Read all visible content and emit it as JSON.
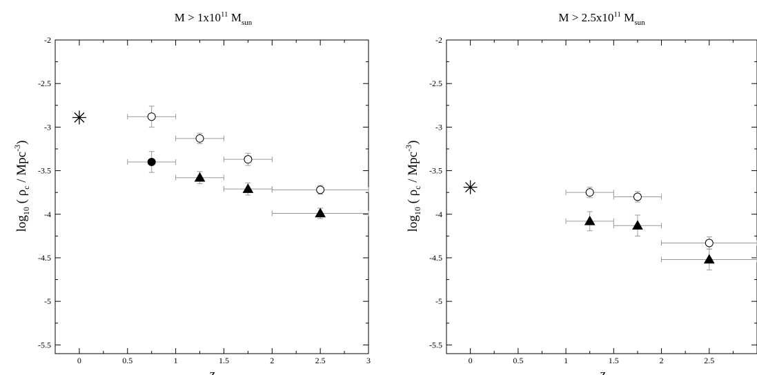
{
  "chart_data": [
    {
      "type": "scatter",
      "title_main": "M > 1x10",
      "title_sup": "11",
      "title_space": " M",
      "title_sub": "sun",
      "xlabel": "z",
      "ylabel_prefix": "log",
      "ylabel_sub": "10",
      "ylabel_mid": " ( ρ",
      "ylabel_sub2": "c",
      "ylabel_mid2": " / Mpc",
      "ylabel_sup": "-3",
      "ylabel_end": ")",
      "xlim": [
        -0.25,
        3
      ],
      "ylim": [
        -5.6,
        -2
      ],
      "xticks": [
        0,
        0.5,
        1,
        1.5,
        2,
        2.5,
        3
      ],
      "xtick_labels": [
        "0",
        "0.5",
        "1",
        "1.5",
        "2",
        "2.5",
        "3"
      ],
      "yticks": [
        -5.5,
        -5,
        -4.5,
        -4,
        -3.5,
        -3,
        -2.5,
        -2
      ],
      "ytick_labels": [
        "-5.5",
        "-5",
        "-4.5",
        "-4",
        "-3.5",
        "-3",
        "-2.5",
        "-2"
      ],
      "series": [
        {
          "marker": "open-circle",
          "points": [
            {
              "x": 0.75,
              "y": -2.88,
              "xerr": 0.25,
              "yerr": 0.12
            },
            {
              "x": 1.25,
              "y": -3.13,
              "xerr": 0.25,
              "yerr": 0.06
            },
            {
              "x": 1.75,
              "y": -3.37,
              "xerr": 0.25,
              "yerr": 0.07
            },
            {
              "x": 2.5,
              "y": -3.72,
              "xerr": 0.5,
              "yerr": 0.05
            }
          ]
        },
        {
          "marker": "filled-circle",
          "points": [
            {
              "x": 0.75,
              "y": -3.4,
              "xerr": 0.25,
              "yerr": 0.12
            }
          ]
        },
        {
          "marker": "filled-triangle",
          "points": [
            {
              "x": 1.25,
              "y": -3.58,
              "xerr": 0.25,
              "yerr": 0.07
            },
            {
              "x": 1.75,
              "y": -3.71,
              "xerr": 0.25,
              "yerr": 0.07
            },
            {
              "x": 2.5,
              "y": -3.99,
              "xerr": 0.5,
              "yerr": 0.06
            }
          ]
        },
        {
          "marker": "star",
          "points": [
            {
              "x": 0,
              "y": -2.89,
              "xerr": 0,
              "yerr": 0
            }
          ]
        }
      ]
    },
    {
      "type": "scatter",
      "title_main": "M > 2.5x10",
      "title_sup": "11",
      "title_space": " M",
      "title_sub": "sun",
      "xlabel": "z",
      "ylabel_prefix": "log",
      "ylabel_sub": "10",
      "ylabel_mid": " ( ρ",
      "ylabel_sub2": "c",
      "ylabel_mid2": " / Mpc",
      "ylabel_sup": "-3",
      "ylabel_end": ")",
      "xlim": [
        -0.25,
        3
      ],
      "ylim": [
        -5.6,
        -2
      ],
      "xticks": [
        0,
        0.5,
        1,
        1.5,
        2,
        2.5
      ],
      "xtick_labels": [
        "0",
        "0.5",
        "1",
        "1.5",
        "2",
        "2.5"
      ],
      "yticks": [
        -5.5,
        -5,
        -4.5,
        -4,
        -3.5,
        -3,
        -2.5,
        -2
      ],
      "ytick_labels": [
        "-5.5",
        "-5",
        "-4.5",
        "-4",
        "-3.5",
        "-3",
        "-2.5",
        "-2"
      ],
      "series": [
        {
          "marker": "open-circle",
          "points": [
            {
              "x": 1.25,
              "y": -3.75,
              "xerr": 0.25,
              "yerr": 0.06
            },
            {
              "x": 1.75,
              "y": -3.8,
              "xerr": 0.25,
              "yerr": 0.06
            },
            {
              "x": 2.5,
              "y": -4.33,
              "xerr": 0.5,
              "yerr": 0.07
            }
          ]
        },
        {
          "marker": "filled-triangle",
          "points": [
            {
              "x": 1.25,
              "y": -4.08,
              "xerr": 0.25,
              "yerr": 0.11
            },
            {
              "x": 1.75,
              "y": -4.13,
              "xerr": 0.25,
              "yerr": 0.12
            },
            {
              "x": 2.5,
              "y": -4.52,
              "xerr": 0.5,
              "yerr": 0.12
            }
          ]
        },
        {
          "marker": "star",
          "points": [
            {
              "x": 0,
              "y": -3.69,
              "xerr": 0,
              "yerr": 0
            }
          ]
        }
      ]
    }
  ]
}
